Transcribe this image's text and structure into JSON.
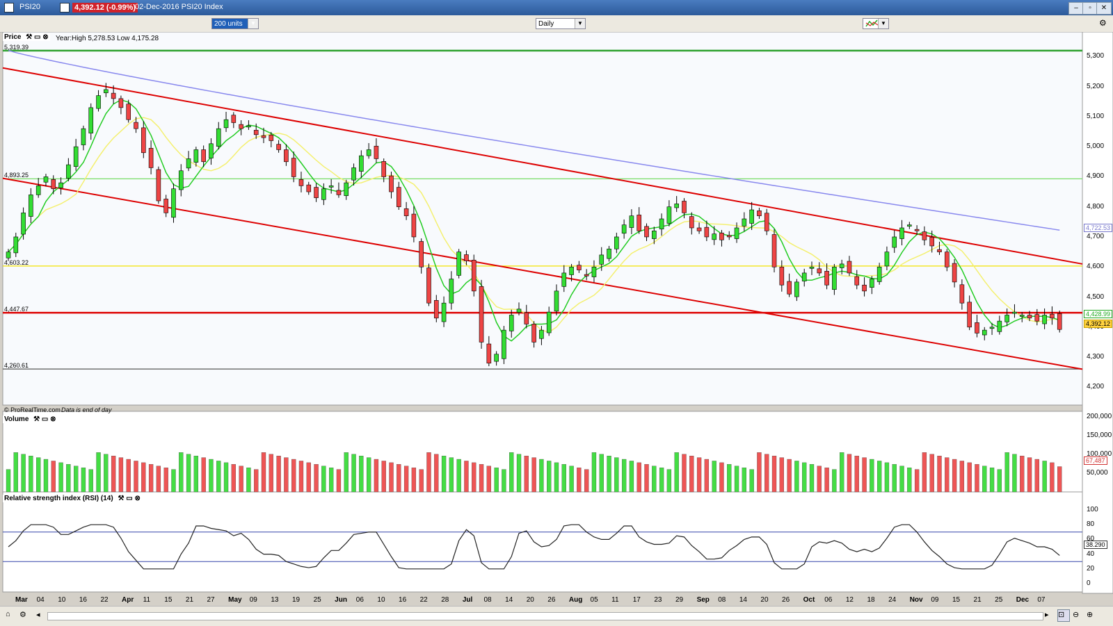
{
  "window": {
    "symbol": "PSI20",
    "price_box": "4,392.12 (-0.99%)",
    "title_rest": "02-Dec-2016 PSI20 Index"
  },
  "toolbar": {
    "units_select": "200 units",
    "period_select": "Daily"
  },
  "price_panel": {
    "label": "Price",
    "info": "Year:High 5,278.53 Low 4,175.28",
    "footer": "© ProRealTime.com",
    "footer_italic": "Data is end of day",
    "h_levels": [
      {
        "label": "5,319.39",
        "value": 5319.39,
        "color": "#2ca02c"
      },
      {
        "label": "4,893.25",
        "value": 4893.25,
        "color": "#77dd66"
      },
      {
        "label": "4,603.22",
        "value": 4603.22,
        "color": "#f2e200"
      },
      {
        "label": "4,447.67",
        "value": 4447.67,
        "color": "#dd0000"
      },
      {
        "label": "4,260.61",
        "value": 4260.61,
        "color": "#555555"
      }
    ],
    "y_ticks": [
      "5,300",
      "5,200",
      "5,100",
      "5,000",
      "4,900",
      "4,800",
      "4,700",
      "4,600",
      "4,500",
      "4,400",
      "4,300",
      "4,200"
    ],
    "y_values": [
      5300,
      5200,
      5100,
      5000,
      4900,
      4800,
      4700,
      4600,
      4500,
      4400,
      4300,
      4200
    ],
    "ma200_label": "4,722.53",
    "ma_short_label": "4,428.99",
    "last_price_label": "4,392.12"
  },
  "volume_panel": {
    "label": "Volume",
    "y_ticks": [
      "200,000",
      "150,000",
      "100,000",
      "50,000"
    ],
    "y_values": [
      200000,
      150000,
      100000,
      50000
    ],
    "last_label": "67,487"
  },
  "rsi_panel": {
    "label": "Relative strength index (RSI) (14)",
    "y_ticks": [
      "100",
      "80",
      "60",
      "40",
      "20",
      "0"
    ],
    "y_values": [
      100,
      80,
      60,
      40,
      20,
      0
    ],
    "last_label": "38.290"
  },
  "x_axis": {
    "ticks": [
      {
        "label": "Mar",
        "bold": true
      },
      {
        "label": "04"
      },
      {
        "label": "10"
      },
      {
        "label": "16"
      },
      {
        "label": "22"
      },
      {
        "label": "Apr",
        "bold": true
      },
      {
        "label": "11"
      },
      {
        "label": "15"
      },
      {
        "label": "21"
      },
      {
        "label": "27"
      },
      {
        "label": "May",
        "bold": true
      },
      {
        "label": "09"
      },
      {
        "label": "13"
      },
      {
        "label": "19"
      },
      {
        "label": "25"
      },
      {
        "label": "Jun",
        "bold": true
      },
      {
        "label": "06"
      },
      {
        "label": "10"
      },
      {
        "label": "16"
      },
      {
        "label": "22"
      },
      {
        "label": "28"
      },
      {
        "label": "Jul",
        "bold": true
      },
      {
        "label": "08"
      },
      {
        "label": "14"
      },
      {
        "label": "20"
      },
      {
        "label": "26"
      },
      {
        "label": "Aug",
        "bold": true
      },
      {
        "label": "05"
      },
      {
        "label": "11"
      },
      {
        "label": "17"
      },
      {
        "label": "23"
      },
      {
        "label": "29"
      },
      {
        "label": "Sep",
        "bold": true
      },
      {
        "label": "08"
      },
      {
        "label": "14"
      },
      {
        "label": "20"
      },
      {
        "label": "26"
      },
      {
        "label": "Oct",
        "bold": true
      },
      {
        "label": "06"
      },
      {
        "label": "12"
      },
      {
        "label": "18"
      },
      {
        "label": "24"
      },
      {
        "label": "Nov",
        "bold": true
      },
      {
        "label": "09"
      },
      {
        "label": "15"
      },
      {
        "label": "21"
      },
      {
        "label": "25"
      },
      {
        "label": "Dec",
        "bold": true
      },
      {
        "label": "07"
      }
    ]
  },
  "chart_data": {
    "type": "candlestick",
    "symbol": "PSI20",
    "period": "Daily",
    "last_close": 4392.12,
    "change_pct": -0.99,
    "ylim": [
      4150,
      5340
    ],
    "trendlines": [
      {
        "color": "#dd0000",
        "from": 5262,
        "to": 4610
      },
      {
        "color": "#dd0000",
        "from": 4895,
        "to": 4260
      }
    ],
    "closes": [
      4650,
      4700,
      4780,
      4840,
      4870,
      4900,
      4860,
      4880,
      4940,
      5000,
      5060,
      5130,
      5170,
      5190,
      5160,
      5130,
      5090,
      5060,
      4980,
      4930,
      4820,
      4780,
      4860,
      4920,
      4960,
      4990,
      4950,
      5010,
      5060,
      5090,
      5080,
      5060,
      5070,
      5040,
      5030,
      5020,
      4990,
      4950,
      4900,
      4870,
      4850,
      4830,
      4860,
      4870,
      4840,
      4880,
      4930,
      4970,
      4990,
      4960,
      4900,
      4850,
      4800,
      4770,
      4700,
      4600,
      4480,
      4430,
      4480,
      4560,
      4650,
      4620,
      4520,
      4350,
      4280,
      4310,
      4390,
      4440,
      4460,
      4410,
      4350,
      4390,
      4450,
      4520,
      4580,
      4600,
      4590,
      4570,
      4600,
      4640,
      4660,
      4700,
      4740,
      4770,
      4720,
      4700,
      4720,
      4760,
      4800,
      4810,
      4780,
      4730,
      4720,
      4700,
      4710,
      4690,
      4700,
      4730,
      4760,
      4790,
      4770,
      4720,
      4600,
      4540,
      4510,
      4550,
      4580,
      4600,
      4580,
      4540,
      4600,
      4610,
      4580,
      4540,
      4520,
      4560,
      4600,
      4650,
      4700,
      4730,
      4740,
      4720,
      4690,
      4670,
      4650,
      4600,
      4550,
      4480,
      4400,
      4380,
      4390,
      4400,
      4420,
      4440,
      4450,
      4440,
      4430,
      4420,
      4440,
      4430,
      4392.12
    ],
    "rsi_last": 38.29,
    "volume_last": 67487
  }
}
